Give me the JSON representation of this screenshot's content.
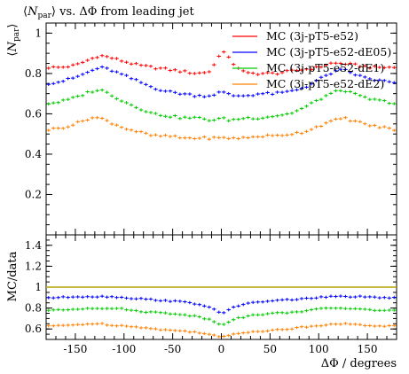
{
  "chart_data": {
    "type": "scatter",
    "title": "⟨N_par⟩ vs. ΔΦ from leading jet",
    "title_parts": {
      "open": "⟨",
      "sym": "N",
      "sub": "par",
      "rest": "⟩ vs. ΔΦ from leading jet"
    },
    "ylabel_parts": {
      "open": "⟨",
      "sym": "N",
      "sub": "par",
      "close": "⟩"
    },
    "xlabel": "ΔΦ / degrees",
    "ratio_ylabel": "MC/data",
    "xlim": [
      -180,
      180
    ],
    "ylim": [
      0,
      1.05
    ],
    "ratio_ylim": [
      0.5,
      1.5
    ],
    "x_ticks": [
      "-150",
      "-100",
      "-50",
      "0",
      "50",
      "100",
      "150"
    ],
    "x_tick_values": [
      -150,
      -100,
      -50,
      0,
      50,
      100,
      150
    ],
    "y_ticks": [
      "0.2",
      "0.4",
      "0.6",
      "0.8",
      "1"
    ],
    "y_tick_values": [
      0.2,
      0.4,
      0.6,
      0.8,
      1.0
    ],
    "ratio_y_ticks": [
      "0.6",
      "0.8",
      "1",
      "1.2",
      "1.4"
    ],
    "ratio_y_tick_values": [
      0.6,
      0.8,
      1.0,
      1.2,
      1.4
    ],
    "legend_position": "top-right",
    "grid": false,
    "x_profile": [
      -180,
      -165,
      -150,
      -135,
      -125,
      -115,
      -100,
      -85,
      -70,
      -55,
      -40,
      -25,
      -12,
      -5,
      0,
      5,
      12,
      25,
      40,
      55,
      70,
      85,
      100,
      112,
      125,
      140,
      155,
      170,
      180
    ],
    "series": [
      {
        "name": "MC (3j-pT5-e52)",
        "color": "#ff0000",
        "main_profile": [
          0.83,
          0.83,
          0.84,
          0.87,
          0.89,
          0.88,
          0.86,
          0.84,
          0.83,
          0.82,
          0.81,
          0.8,
          0.81,
          0.86,
          0.92,
          0.89,
          0.85,
          0.8,
          0.8,
          0.8,
          0.81,
          0.82,
          0.83,
          0.85,
          0.85,
          0.84,
          0.83,
          0.83,
          0.83
        ],
        "ratio_profile": [
          1.0,
          1.0
        ]
      },
      {
        "name": "MC (3j-pT5-e52-dE05)",
        "color": "#0000ff",
        "main_profile": [
          0.75,
          0.76,
          0.78,
          0.81,
          0.83,
          0.82,
          0.79,
          0.76,
          0.73,
          0.71,
          0.7,
          0.69,
          0.69,
          0.7,
          0.71,
          0.7,
          0.69,
          0.69,
          0.7,
          0.7,
          0.71,
          0.73,
          0.77,
          0.8,
          0.82,
          0.79,
          0.77,
          0.76,
          0.75
        ],
        "ratio_profile": [
          0.9,
          0.9,
          0.91,
          0.91,
          0.91,
          0.91,
          0.9,
          0.89,
          0.88,
          0.87,
          0.86,
          0.84,
          0.81,
          0.77,
          0.74,
          0.77,
          0.81,
          0.84,
          0.86,
          0.87,
          0.88,
          0.89,
          0.9,
          0.91,
          0.91,
          0.91,
          0.9,
          0.9,
          0.9
        ]
      },
      {
        "name": "MC (3j-pT5-e52-dE1)",
        "color": "#00cc00",
        "main_profile": [
          0.65,
          0.66,
          0.68,
          0.71,
          0.72,
          0.7,
          0.66,
          0.63,
          0.6,
          0.59,
          0.58,
          0.58,
          0.57,
          0.57,
          0.58,
          0.57,
          0.57,
          0.58,
          0.58,
          0.59,
          0.6,
          0.63,
          0.67,
          0.7,
          0.72,
          0.69,
          0.67,
          0.66,
          0.65
        ],
        "ratio_profile": [
          0.78,
          0.78,
          0.79,
          0.8,
          0.8,
          0.8,
          0.79,
          0.77,
          0.76,
          0.75,
          0.74,
          0.72,
          0.69,
          0.66,
          0.64,
          0.66,
          0.69,
          0.72,
          0.74,
          0.75,
          0.76,
          0.77,
          0.79,
          0.8,
          0.8,
          0.79,
          0.78,
          0.78,
          0.78
        ]
      },
      {
        "name": "MC (3j-pT5-e52-dE2)",
        "color": "#ff8000",
        "main_profile": [
          0.52,
          0.53,
          0.55,
          0.58,
          0.58,
          0.56,
          0.53,
          0.51,
          0.49,
          0.49,
          0.48,
          0.48,
          0.48,
          0.48,
          0.48,
          0.48,
          0.48,
          0.48,
          0.49,
          0.49,
          0.5,
          0.51,
          0.54,
          0.56,
          0.58,
          0.56,
          0.54,
          0.53,
          0.52
        ],
        "ratio_profile": [
          0.63,
          0.63,
          0.64,
          0.65,
          0.65,
          0.64,
          0.63,
          0.62,
          0.6,
          0.59,
          0.58,
          0.57,
          0.55,
          0.53,
          0.52,
          0.53,
          0.55,
          0.57,
          0.58,
          0.59,
          0.6,
          0.62,
          0.63,
          0.65,
          0.65,
          0.64,
          0.63,
          0.63,
          0.63
        ]
      }
    ],
    "reference_line": {
      "value": 1.0,
      "color": "#b0a000"
    },
    "points_per_series": 72
  }
}
